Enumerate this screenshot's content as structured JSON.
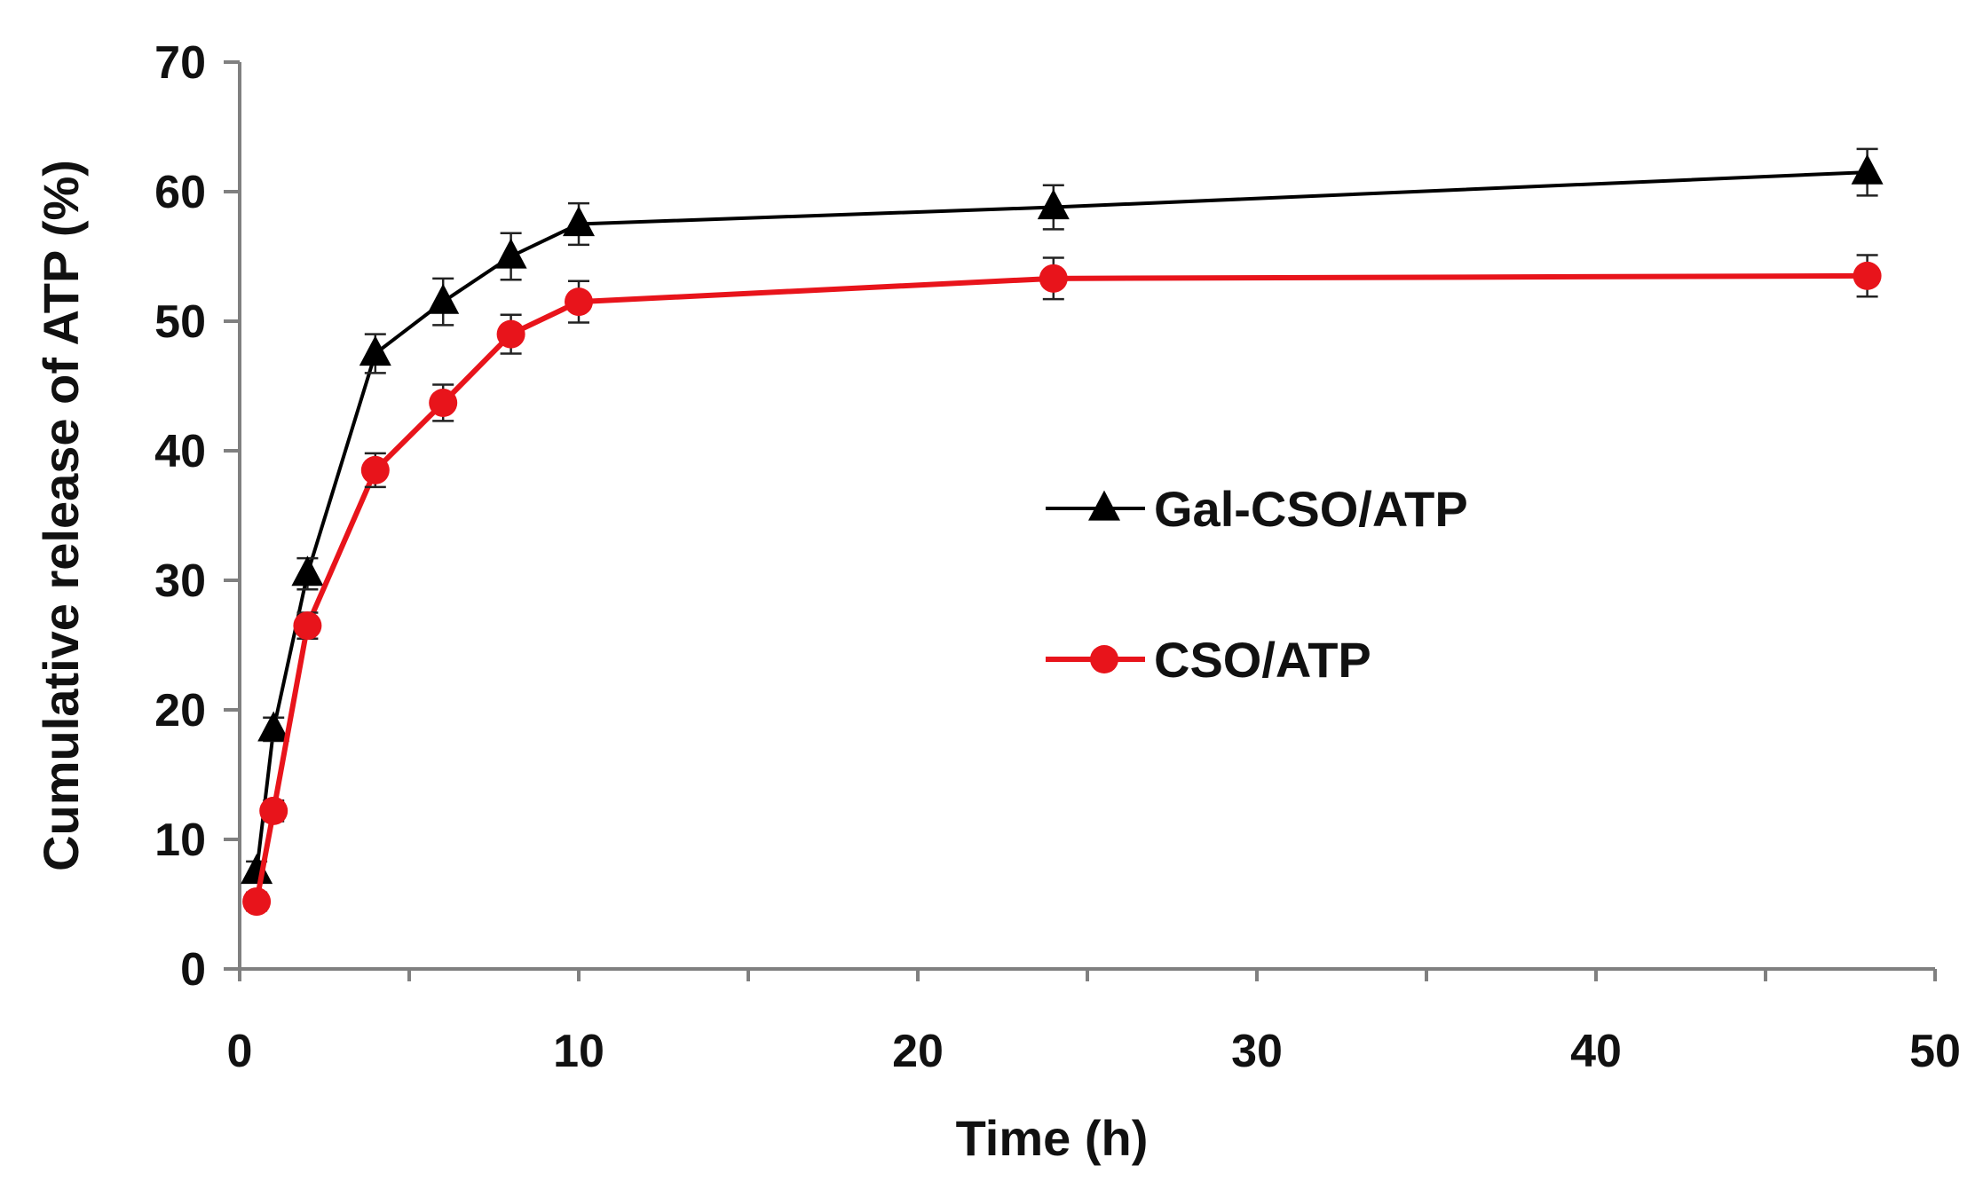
{
  "chart_data": {
    "type": "line",
    "title": "",
    "xlabel": "Time (h)",
    "ylabel": "Cumulative release of ATP (%)",
    "xlim": [
      0,
      50
    ],
    "ylim": [
      0,
      70
    ],
    "xticks": [
      0,
      10,
      20,
      30,
      40,
      50
    ],
    "yticks": [
      0,
      10,
      20,
      30,
      40,
      50,
      60,
      70
    ],
    "x_minor_step": 5,
    "grid": false,
    "legend_position": "center-right",
    "series": [
      {
        "name": "Gal-CSO/ATP",
        "color": "#000000",
        "marker": "triangle",
        "x": [
          0.5,
          1,
          2,
          4,
          6,
          8,
          10,
          24,
          48
        ],
        "y": [
          7.5,
          18.5,
          30.5,
          47.5,
          51.5,
          55,
          57.5,
          58.8,
          61.5
        ],
        "err": [
          0.8,
          0.9,
          1.2,
          1.5,
          1.8,
          1.8,
          1.6,
          1.7,
          1.8
        ]
      },
      {
        "name": "CSO/ATP",
        "color": "#e8141b",
        "marker": "circle",
        "x": [
          0.5,
          1,
          2,
          4,
          6,
          8,
          10,
          24,
          48
        ],
        "y": [
          5.2,
          12.2,
          26.5,
          38.5,
          43.7,
          49,
          51.5,
          53.3,
          53.5
        ],
        "err": [
          0.7,
          0.8,
          1.0,
          1.3,
          1.4,
          1.5,
          1.6,
          1.6,
          1.6
        ]
      }
    ]
  }
}
